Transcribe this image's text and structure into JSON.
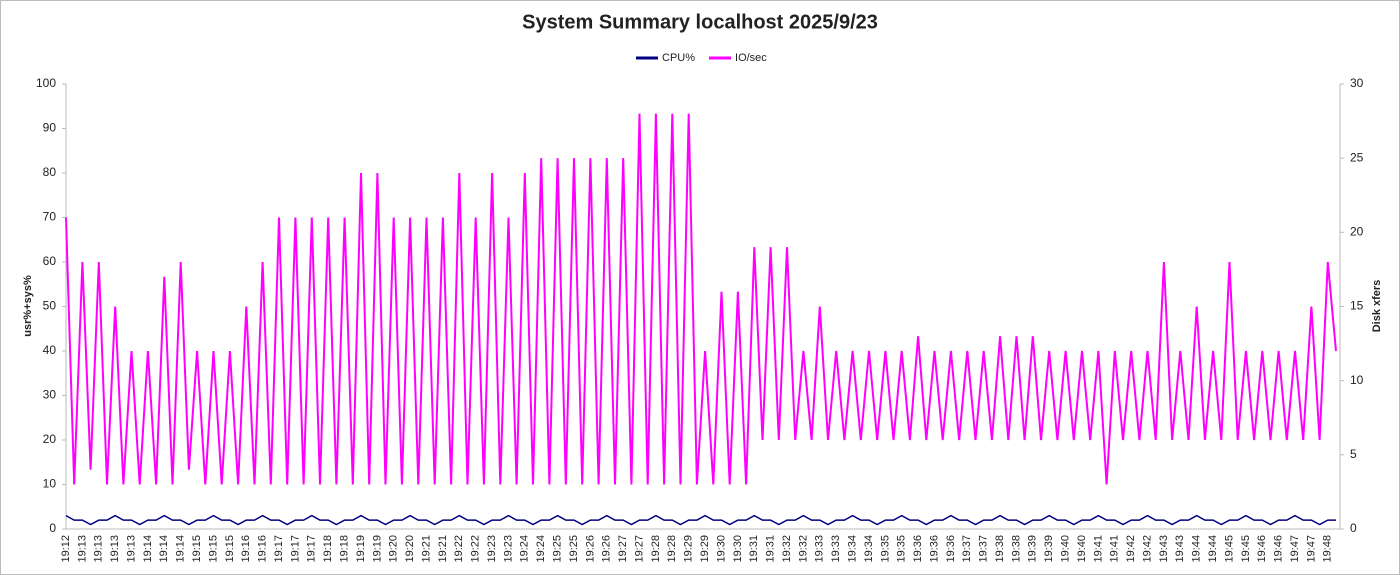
{
  "chart_data": {
    "type": "line",
    "title": "System Summary localhost  2025/9/23",
    "y_label": "usr%+sys%",
    "y2_label": "Disk xfers",
    "categories": [
      "19:12",
      null,
      "19:13",
      null,
      "19:13",
      null,
      "19:13",
      null,
      "19:13",
      null,
      "19:14",
      null,
      "19:14",
      null,
      "19:14",
      null,
      "19:15",
      null,
      "19:15",
      null,
      "19:15",
      null,
      "19:16",
      null,
      "19:16",
      null,
      "19:17",
      null,
      "19:17",
      null,
      "19:17",
      null,
      "19:18",
      null,
      "19:18",
      null,
      "19:19",
      null,
      "19:19",
      null,
      "19:20",
      null,
      "19:20",
      null,
      "19:21",
      null,
      "19:21",
      null,
      "19:22",
      null,
      "19:22",
      null,
      "19:23",
      null,
      "19:23",
      null,
      "19:24",
      null,
      "19:24",
      null,
      "19:25",
      null,
      "19:25",
      null,
      "19:26",
      null,
      "19:26",
      null,
      "19:27",
      null,
      "19:27",
      null,
      "19:28",
      null,
      "19:28",
      null,
      "19:29",
      null,
      "19:29",
      null,
      "19:30",
      null,
      "19:30",
      null,
      "19:31",
      null,
      "19:31",
      null,
      "19:32",
      null,
      "19:32",
      null,
      "19:33",
      null,
      "19:33",
      null,
      "19:34",
      null,
      "19:34",
      null,
      "19:35",
      null,
      "19:35",
      null,
      "19:36",
      null,
      "19:36",
      null,
      "19:36",
      null,
      "19:37",
      null,
      "19:37",
      null,
      "19:38",
      null,
      "19:38",
      null,
      "19:39",
      null,
      "19:39",
      null,
      "19:40",
      null,
      "19:40",
      null,
      "19:41",
      null,
      "19:41",
      null,
      "19:42",
      null,
      "19:42",
      null,
      "19:43",
      null,
      "19:43",
      null,
      "19:44",
      null,
      "19:44",
      null,
      "19:45",
      null,
      "19:45",
      null,
      "19:46",
      null,
      "19:46",
      null,
      "19:47",
      null,
      "19:47",
      null,
      "19:48",
      null
    ],
    "series": [
      {
        "name": "CPU%",
        "color": "#000080",
        "values": [
          3,
          2,
          2,
          1,
          2,
          2,
          3,
          2,
          2,
          1,
          2,
          2,
          3,
          2,
          2,
          1,
          2,
          2,
          3,
          2,
          2,
          1,
          2,
          2,
          3,
          2,
          2,
          1,
          2,
          2,
          3,
          2,
          2,
          1,
          2,
          2,
          3,
          2,
          2,
          1,
          2,
          2,
          3,
          2,
          2,
          1,
          2,
          2,
          3,
          2,
          2,
          1,
          2,
          2,
          3,
          2,
          2,
          1,
          2,
          2,
          3,
          2,
          2,
          1,
          2,
          2,
          3,
          2,
          2,
          1,
          2,
          2,
          3,
          2,
          2,
          1,
          2,
          2,
          3,
          2,
          2,
          1,
          2,
          2,
          3,
          2,
          2,
          1,
          2,
          2,
          3,
          2,
          2,
          1,
          2,
          2,
          3,
          2,
          2,
          1,
          2,
          2,
          3,
          2,
          2,
          1,
          2,
          2,
          3,
          2,
          2,
          1,
          2,
          2,
          3,
          2,
          2,
          1,
          2,
          2,
          3,
          2,
          2,
          1,
          2,
          2,
          3,
          2,
          2,
          1,
          2,
          2,
          3,
          2,
          2,
          1,
          2,
          2,
          3,
          2,
          2,
          1,
          2,
          2,
          3,
          2,
          2,
          1,
          2,
          2,
          3,
          2,
          2,
          1,
          2,
          2
        ]
      },
      {
        "name": "IO/sec",
        "color": "#ff00ff",
        "axis": "y2",
        "values": [
          21,
          3,
          18,
          4,
          18,
          3,
          15,
          3,
          12,
          3,
          12,
          3,
          17,
          3,
          18,
          4,
          12,
          3,
          12,
          3,
          12,
          3,
          15,
          3,
          18,
          3,
          21,
          3,
          21,
          3,
          21,
          3,
          21,
          3,
          21,
          3,
          24,
          3,
          24,
          3,
          21,
          3,
          21,
          3,
          21,
          3,
          21,
          3,
          24,
          3,
          21,
          3,
          24,
          3,
          21,
          3,
          24,
          3,
          25,
          3,
          25,
          3,
          25,
          3,
          25,
          3,
          25,
          3,
          25,
          3,
          28,
          3,
          28,
          3,
          28,
          3,
          28,
          3,
          12,
          3,
          16,
          3,
          16,
          3,
          19,
          6,
          19,
          6,
          19,
          6,
          12,
          6,
          15,
          6,
          12,
          6,
          12,
          6,
          12,
          6,
          12,
          6,
          12,
          6,
          13,
          6,
          12,
          6,
          12,
          6,
          12,
          6,
          12,
          6,
          13,
          6,
          13,
          6,
          13,
          6,
          12,
          6,
          12,
          6,
          12,
          6,
          12,
          3,
          12,
          6,
          12,
          6,
          12,
          6,
          18,
          6,
          12,
          6,
          15,
          6,
          12,
          6,
          18,
          6,
          12,
          6,
          12,
          6,
          12,
          6,
          12,
          6,
          15,
          6,
          18,
          12
        ]
      }
    ],
    "ylim": [
      0,
      100
    ],
    "yticks": [
      0,
      10,
      20,
      30,
      40,
      50,
      60,
      70,
      80,
      90,
      100
    ],
    "y2lim": [
      0,
      30
    ],
    "y2ticks": [
      0,
      5,
      10,
      15,
      20,
      25,
      30
    ],
    "legend": "top"
  }
}
